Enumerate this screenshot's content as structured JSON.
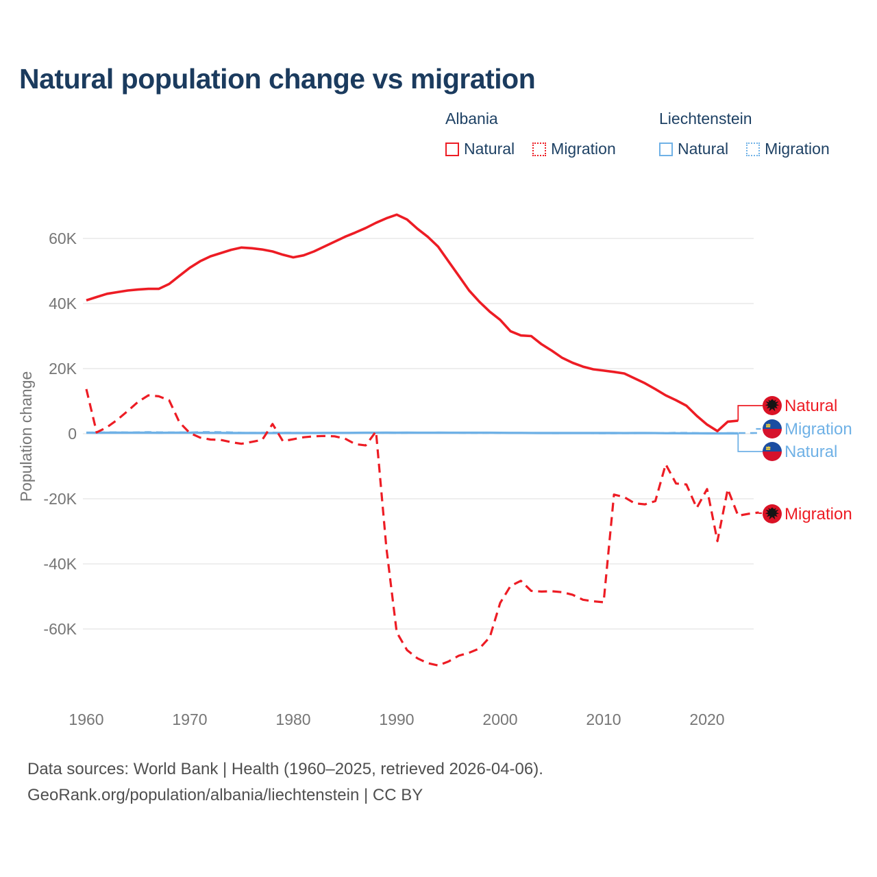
{
  "title": "Natural population change vs migration",
  "colors": {
    "albania": "#ed1c24",
    "liechtenstein": "#6fb1e6",
    "title_text": "#1b3b5e",
    "legend_text": "#1e4164",
    "axis_text": "#767676",
    "footer_text": "#4f4f4f",
    "gridline": "#e9e9e9",
    "flag_albania_red": "#da1225",
    "flag_eagle_black": "#141414",
    "flag_li_blue": "#1b4da1",
    "flag_li_red": "#d6122c",
    "flag_li_gold": "#ffd733"
  },
  "legend": {
    "groups": [
      {
        "country": "Albania",
        "items": [
          {
            "label": "Natural",
            "line": "solid",
            "color_key": "albania"
          },
          {
            "label": "Migration",
            "line": "dotted",
            "color_key": "albania"
          }
        ]
      },
      {
        "country": "Liechtenstein",
        "items": [
          {
            "label": "Natural",
            "line": "solid",
            "color_key": "liechtenstein"
          },
          {
            "label": "Migration",
            "line": "dotted",
            "color_key": "liechtenstein"
          }
        ]
      }
    ]
  },
  "y_axis": {
    "title": "Population change",
    "ticks": [
      "60K",
      "40K",
      "20K",
      "0",
      "-20K",
      "-40K",
      "-60K"
    ],
    "tick_values": [
      60,
      40,
      20,
      0,
      -20,
      -40,
      -60
    ]
  },
  "x_axis": {
    "ticks": [
      "1960",
      "1970",
      "1980",
      "1990",
      "2000",
      "2010",
      "2020"
    ]
  },
  "end_labels": [
    {
      "text": "Natural",
      "country": "Albania",
      "flag": "albania",
      "color": "#ed1c24",
      "series_index": 0
    },
    {
      "text": "Migration",
      "country": "Liechtenstein",
      "flag": "liechtenstein",
      "color": "#6fb1e6",
      "series_index": 3
    },
    {
      "text": "Natural",
      "country": "Liechtenstein",
      "flag": "liechtenstein",
      "color": "#6fb1e6",
      "series_index": 2
    },
    {
      "text": "Migration",
      "country": "Albania",
      "flag": "albania",
      "color": "#ed1c24",
      "series_index": 1
    }
  ],
  "footer": {
    "line1": "Data sources: World Bank | Health (1960–2025, retrieved 2026-04-06).",
    "line2": "GeoRank.org/population/albania/liechtenstein | CC BY"
  },
  "chart_data": {
    "type": "line",
    "title": "Natural population change vs migration",
    "ylabel": "Population change",
    "value_unit": "thousands of people per year",
    "xlim": [
      1960,
      2025
    ],
    "ylim": [
      -75,
      72
    ],
    "grid": "horizontal",
    "legend_position": "top-right",
    "series": [
      {
        "name": "Albania Natural",
        "country": "Albania",
        "metric": "Natural",
        "style": "solid",
        "color": "#ed1c24",
        "start_year": 1960,
        "values": [
          41,
          42,
          43,
          43.5,
          44,
          44.3,
          44.5,
          44.5,
          46,
          48.5,
          51,
          53,
          54.5,
          55.5,
          56.5,
          57.2,
          57,
          56.6,
          56,
          55,
          54.2,
          54.8,
          56,
          57.5,
          59,
          60.5,
          61.8,
          63.2,
          64.8,
          66.2,
          67.3,
          65.8,
          63,
          60.5,
          57.5,
          53,
          48.5,
          44,
          40.5,
          37.5,
          35,
          31.5,
          30.2,
          30,
          27.5,
          25.5,
          23.3,
          21.8,
          20.6,
          19.8,
          19.4,
          19,
          18.5,
          17,
          15.5,
          13.7,
          11.8,
          10.3,
          8.6,
          5.5,
          2.8,
          0.8,
          3.7,
          4
        ]
      },
      {
        "name": "Albania Migration",
        "country": "Albania",
        "metric": "Migration",
        "style": "dashed",
        "color": "#ed1c24",
        "start_year": 1960,
        "values": [
          13.7,
          0.4,
          2,
          4.3,
          7,
          9.8,
          11.8,
          11.5,
          10.3,
          3.5,
          0.2,
          -1.2,
          -1.8,
          -1.9,
          -2.6,
          -3.1,
          -2.5,
          -1.9,
          3,
          -2.3,
          -1.7,
          -1.1,
          -0.8,
          -0.7,
          -0.8,
          -1.5,
          -3.2,
          -3.6,
          0.7,
          -35,
          -61,
          -66.5,
          -69,
          -70.5,
          -71.2,
          -70,
          -68.2,
          -67.3,
          -66,
          -62.5,
          -52,
          -46.8,
          -45.2,
          -48.3,
          -48.5,
          -48.4,
          -48.7,
          -49.5,
          -51,
          -51.5,
          -51.8,
          -18.7,
          -19.5,
          -21.4,
          -21.7,
          -20.7,
          -9.4,
          -15.3,
          -15.6,
          -22.8,
          -17,
          -33,
          -17,
          -25.2,
          -24.6,
          -24.2
        ]
      },
      {
        "name": "Liechtenstein Natural",
        "country": "Liechtenstein",
        "metric": "Natural",
        "style": "solid",
        "color": "#6fb1e6",
        "start_year": 1960,
        "values": [
          0.3,
          0.28,
          0.3,
          0.32,
          0.3,
          0.33,
          0.3,
          0.28,
          0.3,
          0.32,
          0.3,
          0.28,
          0.26,
          0.25,
          0.22,
          0.2,
          0.22,
          0.2,
          0.18,
          0.2,
          0.2,
          0.22,
          0.24,
          0.25,
          0.26,
          0.25,
          0.27,
          0.3,
          0.3,
          0.32,
          0.3,
          0.32,
          0.3,
          0.3,
          0.32,
          0.3,
          0.3,
          0.3,
          0.3,
          0.3,
          0.28,
          0.26,
          0.25,
          0.24,
          0.22,
          0.2,
          0.2,
          0.22,
          0.22,
          0.2,
          0.2,
          0.2,
          0.18,
          0.2,
          0.2,
          0.18,
          0.15,
          0.15,
          0.12,
          0.12,
          0.1,
          0.08,
          0.1,
          0.1
        ]
      },
      {
        "name": "Liechtenstein Migration",
        "country": "Liechtenstein",
        "metric": "Migration",
        "style": "dashed",
        "color": "#6fb1e6",
        "start_year": 1960,
        "values": [
          0.35,
          0.4,
          0.42,
          0.45,
          0.4,
          0.45,
          0.5,
          0.45,
          0.42,
          0.4,
          0.38,
          0.5,
          0.52,
          0.48,
          0.42,
          0.3,
          0.28,
          0.3,
          0.35,
          0.3,
          0.3,
          0.26,
          0.22,
          0.2,
          0.25,
          0.26,
          0.3,
          0.3,
          0.28,
          0.25,
          0.2,
          0.25,
          0.3,
          0.32,
          0.35,
          0.3,
          0.25,
          0.22,
          0.2,
          0.25,
          0.22,
          0.2,
          0.25,
          0.22,
          0.2,
          0.15,
          0.15,
          0.2,
          0.2,
          0.15,
          0.1,
          0.12,
          0.15,
          0.15,
          0.2,
          0.2,
          0.25,
          0.3,
          0.28,
          0.2,
          0.1,
          0.15,
          0.2,
          0.22,
          0.2,
          0.2
        ]
      }
    ]
  }
}
